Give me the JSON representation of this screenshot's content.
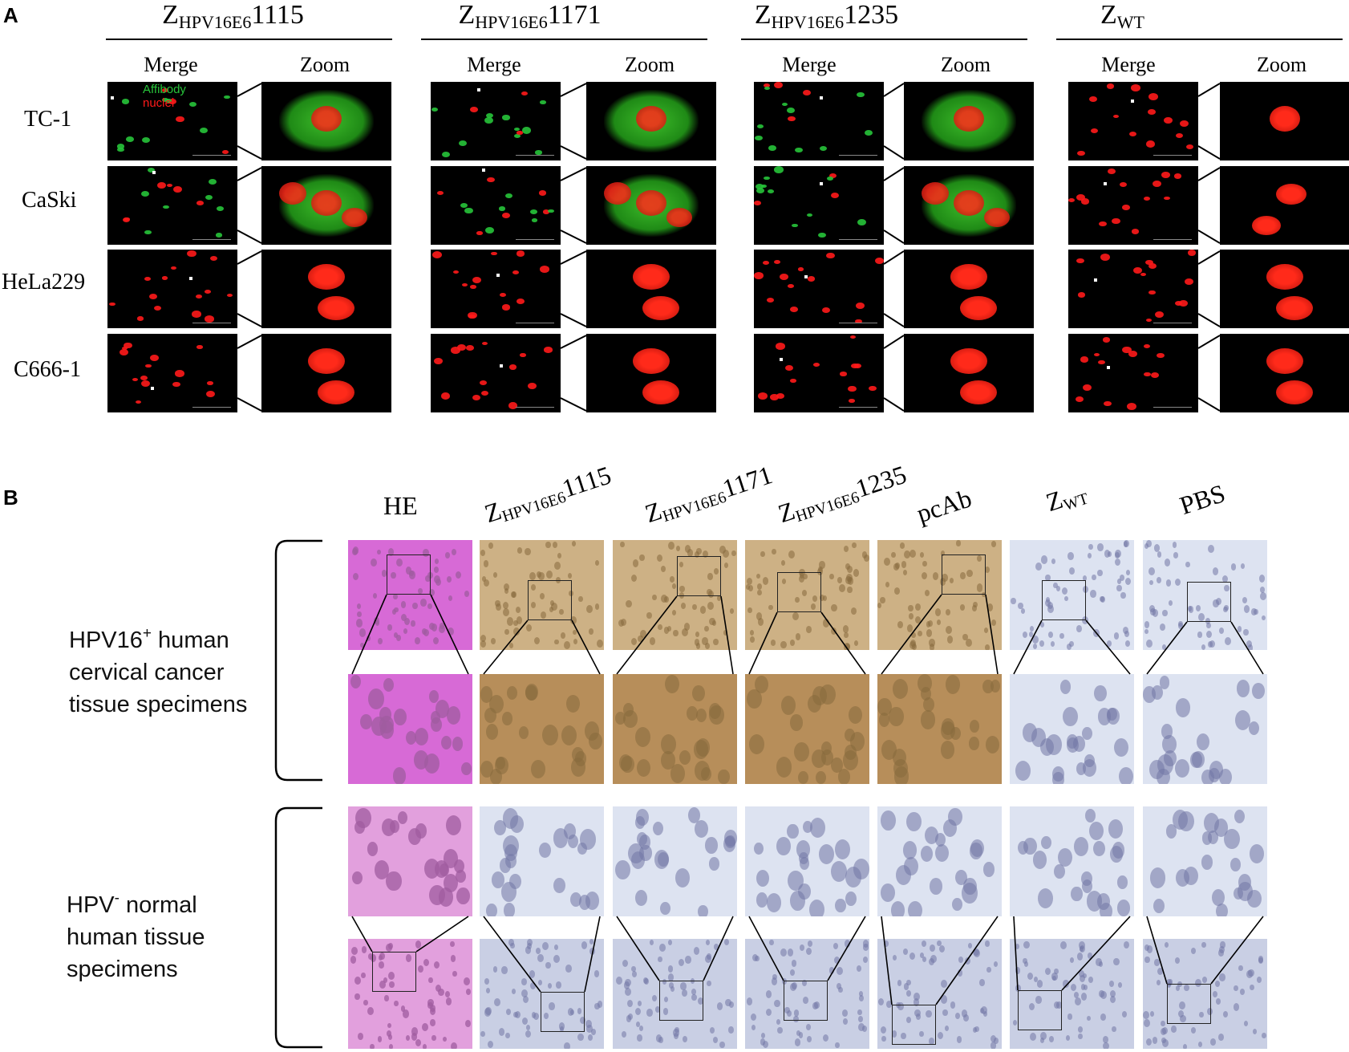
{
  "panel_a": {
    "letter": "A",
    "groups": [
      {
        "main": "Z",
        "sub": "HPV16E6",
        "num": "1115"
      },
      {
        "main": "Z",
        "sub": "HPV16E6",
        "num": "1171"
      },
      {
        "main": "Z",
        "sub": "HPV16E6",
        "num": "1235"
      },
      {
        "main": "Z",
        "sub": "WT",
        "num": ""
      }
    ],
    "merge_label": "Merge",
    "zoom_label": "Zoom",
    "rows": [
      "TC-1",
      "CaSki",
      "HeLa229",
      "C666-1"
    ],
    "legend": {
      "affibody": "Affibody",
      "nuclei": "nuclei"
    },
    "colors": {
      "affibody": "#27c43a",
      "nuclei": "#ff1a1a",
      "background": "#000000"
    }
  },
  "panel_b": {
    "letter": "B",
    "columns": [
      {
        "main": "HE",
        "sub": "",
        "num": ""
      },
      {
        "main": "Z",
        "sub": "HPV16E6",
        "num": "1115"
      },
      {
        "main": "Z",
        "sub": "HPV16E6",
        "num": "1171"
      },
      {
        "main": "Z",
        "sub": "HPV16E6",
        "num": "1235"
      },
      {
        "main": "pcAb",
        "sub": "",
        "num": ""
      },
      {
        "main": "Z",
        "sub": "WT",
        "num": ""
      },
      {
        "main": "PBS",
        "sub": "",
        "num": ""
      }
    ],
    "group1": {
      "line1_pre": "HPV16",
      "line1_sup": "+",
      "line1_post": " human",
      "line2": "cervical cancer",
      "line3": "tissue specimens"
    },
    "group2": {
      "line1_pre": "HPV",
      "line1_sup": "-",
      "line1_post": " normal",
      "line2": "human tissue",
      "line3": "specimens"
    },
    "colors": {
      "he": "#c873c8",
      "dab": "#a9844c",
      "hematoxylin": "#8f95cf"
    }
  }
}
